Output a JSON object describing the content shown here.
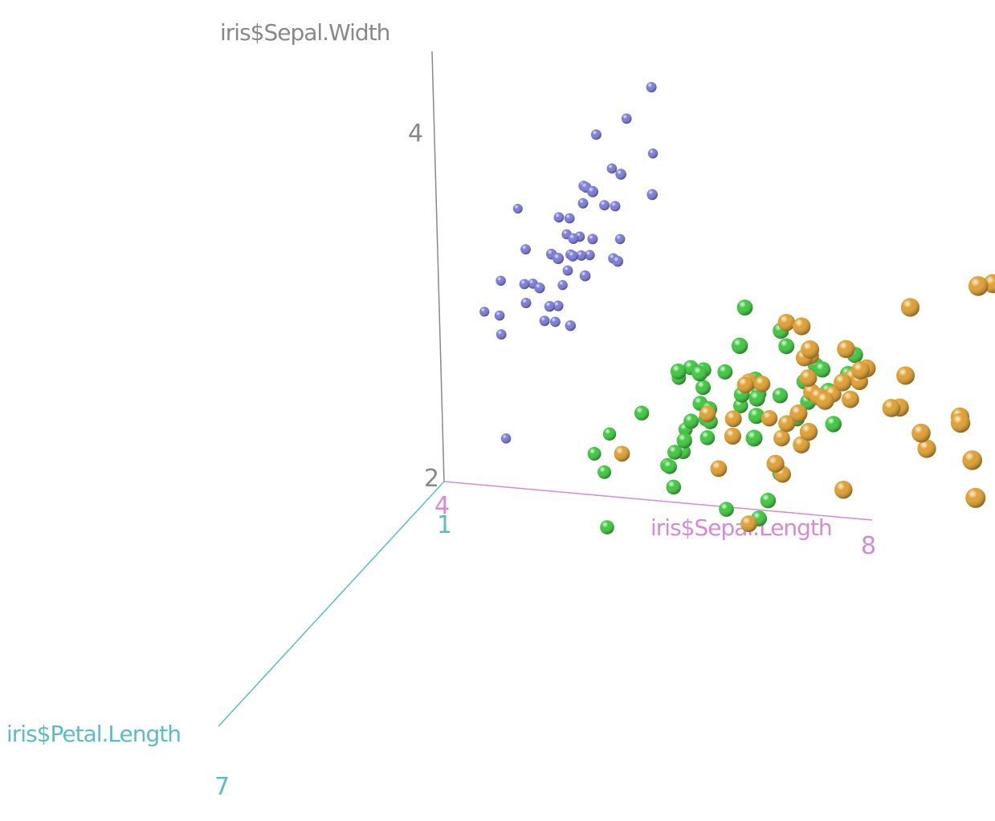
{
  "chart_data": {
    "type": "scatter3d",
    "title": "",
    "axes": {
      "x": {
        "label": "iris$Sepal.Length",
        "ticks": [
          "4",
          "8"
        ],
        "range": [
          4,
          8
        ],
        "color": "#d58ad5"
      },
      "y": {
        "label": "iris$Sepal.Width",
        "ticks": [
          "2",
          "4"
        ],
        "range": [
          2,
          4.4
        ],
        "color": "#888888"
      },
      "z": {
        "label": "iris$Petal.Length",
        "ticks": [
          "1",
          "7"
        ],
        "range": [
          1,
          7
        ],
        "color": "#5bbcc4"
      }
    },
    "grid": false,
    "legend": "none",
    "series": [
      {
        "color": "#7b7bdb",
        "points": [
          [
            5.1,
            3.5,
            1.4
          ],
          [
            4.9,
            3.0,
            1.4
          ],
          [
            4.7,
            3.2,
            1.3
          ],
          [
            4.6,
            3.1,
            1.5
          ],
          [
            5.0,
            3.6,
            1.4
          ],
          [
            5.4,
            3.9,
            1.7
          ],
          [
            4.6,
            3.4,
            1.4
          ],
          [
            5.0,
            3.4,
            1.5
          ],
          [
            4.4,
            2.9,
            1.4
          ],
          [
            4.9,
            3.1,
            1.5
          ],
          [
            5.4,
            3.7,
            1.5
          ],
          [
            4.8,
            3.4,
            1.6
          ],
          [
            4.8,
            3.0,
            1.4
          ],
          [
            4.3,
            3.0,
            1.1
          ],
          [
            5.8,
            4.0,
            1.2
          ],
          [
            5.7,
            4.4,
            1.5
          ],
          [
            5.4,
            3.9,
            1.3
          ],
          [
            5.1,
            3.5,
            1.4
          ],
          [
            5.7,
            3.8,
            1.7
          ],
          [
            5.1,
            3.8,
            1.5
          ],
          [
            5.4,
            3.4,
            1.7
          ],
          [
            5.1,
            3.7,
            1.5
          ],
          [
            4.6,
            3.6,
            1.0
          ],
          [
            5.1,
            3.3,
            1.7
          ],
          [
            4.8,
            3.4,
            1.9
          ],
          [
            5.0,
            3.0,
            1.6
          ],
          [
            5.0,
            3.4,
            1.6
          ],
          [
            5.2,
            3.5,
            1.5
          ],
          [
            5.2,
            3.4,
            1.4
          ],
          [
            4.7,
            3.2,
            1.6
          ],
          [
            4.8,
            3.1,
            1.6
          ],
          [
            5.4,
            3.4,
            1.5
          ],
          [
            5.2,
            4.1,
            1.5
          ],
          [
            5.5,
            4.2,
            1.4
          ],
          [
            4.9,
            3.1,
            1.5
          ],
          [
            5.0,
            3.2,
            1.2
          ],
          [
            5.5,
            3.5,
            1.3
          ],
          [
            4.9,
            3.6,
            1.4
          ],
          [
            4.4,
            3.0,
            1.3
          ],
          [
            5.1,
            3.4,
            1.5
          ],
          [
            5.0,
            3.5,
            1.3
          ],
          [
            4.5,
            2.3,
            1.3
          ],
          [
            4.4,
            3.2,
            1.3
          ],
          [
            5.0,
            3.5,
            1.6
          ],
          [
            5.1,
            3.8,
            1.9
          ],
          [
            4.8,
            3.0,
            1.4
          ],
          [
            5.1,
            3.8,
            1.6
          ],
          [
            4.6,
            3.2,
            1.4
          ],
          [
            5.3,
            3.7,
            1.5
          ],
          [
            5.0,
            3.3,
            1.4
          ]
        ]
      },
      {
        "color": "#3ec83e",
        "points": [
          [
            7.0,
            3.2,
            4.7
          ],
          [
            6.4,
            3.2,
            4.5
          ],
          [
            6.9,
            3.1,
            4.9
          ],
          [
            5.5,
            2.3,
            4.0
          ],
          [
            6.5,
            2.8,
            4.6
          ],
          [
            5.7,
            2.8,
            4.5
          ],
          [
            6.3,
            3.3,
            4.7
          ],
          [
            4.9,
            2.4,
            3.3
          ],
          [
            6.6,
            2.9,
            4.6
          ],
          [
            5.2,
            2.7,
            3.9
          ],
          [
            5.0,
            2.0,
            3.5
          ],
          [
            5.9,
            3.0,
            4.2
          ],
          [
            6.0,
            2.2,
            4.0
          ],
          [
            6.1,
            2.9,
            4.7
          ],
          [
            5.6,
            2.9,
            3.6
          ],
          [
            6.7,
            3.1,
            4.4
          ],
          [
            5.6,
            3.0,
            4.5
          ],
          [
            5.8,
            2.7,
            4.1
          ],
          [
            6.2,
            2.2,
            4.5
          ],
          [
            5.6,
            2.5,
            3.9
          ],
          [
            5.9,
            3.2,
            4.8
          ],
          [
            6.1,
            2.8,
            4.0
          ],
          [
            6.3,
            2.5,
            4.9
          ],
          [
            6.1,
            2.8,
            4.7
          ],
          [
            6.4,
            2.9,
            4.3
          ],
          [
            6.6,
            3.0,
            4.4
          ],
          [
            6.8,
            2.8,
            4.8
          ],
          [
            6.7,
            3.0,
            5.0
          ],
          [
            6.0,
            2.9,
            4.5
          ],
          [
            5.7,
            2.6,
            3.5
          ],
          [
            5.5,
            2.4,
            3.8
          ],
          [
            5.5,
            2.4,
            3.7
          ],
          [
            5.8,
            2.7,
            3.9
          ],
          [
            6.0,
            2.7,
            5.1
          ],
          [
            5.4,
            3.0,
            4.5
          ],
          [
            6.0,
            3.4,
            4.5
          ],
          [
            6.7,
            3.1,
            4.7
          ],
          [
            6.3,
            2.3,
            4.4
          ],
          [
            5.6,
            3.0,
            4.1
          ],
          [
            5.5,
            2.5,
            4.0
          ],
          [
            5.5,
            2.6,
            4.4
          ],
          [
            6.1,
            3.0,
            4.6
          ],
          [
            5.8,
            2.6,
            4.0
          ],
          [
            5.0,
            2.3,
            3.3
          ],
          [
            5.6,
            2.7,
            4.2
          ],
          [
            5.7,
            3.0,
            4.2
          ],
          [
            5.7,
            2.9,
            4.2
          ],
          [
            6.2,
            2.9,
            4.3
          ],
          [
            5.1,
            2.5,
            3.0
          ],
          [
            5.7,
            2.8,
            4.1
          ]
        ]
      },
      {
        "color": "#e0a030",
        "points": [
          [
            6.3,
            3.3,
            6.0
          ],
          [
            5.8,
            2.7,
            5.1
          ],
          [
            7.1,
            3.0,
            5.9
          ],
          [
            6.3,
            2.9,
            5.6
          ],
          [
            6.5,
            3.0,
            5.8
          ],
          [
            7.6,
            3.0,
            6.6
          ],
          [
            4.9,
            2.5,
            4.5
          ],
          [
            7.3,
            2.9,
            6.3
          ],
          [
            6.7,
            2.5,
            5.8
          ],
          [
            7.2,
            3.6,
            6.1
          ],
          [
            6.5,
            3.2,
            5.1
          ],
          [
            6.4,
            2.7,
            5.3
          ],
          [
            6.8,
            3.0,
            5.5
          ],
          [
            5.7,
            2.5,
            5.0
          ],
          [
            5.8,
            2.8,
            5.1
          ],
          [
            6.4,
            3.2,
            5.3
          ],
          [
            6.5,
            3.0,
            5.5
          ],
          [
            7.7,
            3.8,
            6.7
          ],
          [
            7.7,
            2.6,
            6.9
          ],
          [
            6.0,
            2.2,
            5.0
          ],
          [
            6.9,
            3.2,
            5.7
          ],
          [
            5.6,
            2.8,
            4.9
          ],
          [
            7.7,
            2.8,
            6.7
          ],
          [
            6.3,
            2.7,
            4.9
          ],
          [
            6.7,
            3.3,
            5.7
          ],
          [
            7.2,
            3.2,
            6.0
          ],
          [
            6.2,
            2.8,
            4.8
          ],
          [
            6.1,
            3.0,
            4.9
          ],
          [
            6.4,
            2.8,
            5.6
          ],
          [
            7.2,
            3.0,
            5.8
          ],
          [
            7.4,
            2.8,
            6.1
          ],
          [
            7.9,
            3.8,
            6.4
          ],
          [
            6.4,
            2.8,
            5.6
          ],
          [
            6.3,
            2.8,
            5.1
          ],
          [
            6.1,
            2.6,
            5.6
          ],
          [
            7.7,
            3.0,
            6.1
          ],
          [
            6.3,
            3.4,
            5.6
          ],
          [
            6.4,
            3.1,
            5.5
          ],
          [
            6.0,
            3.0,
            4.8
          ],
          [
            6.9,
            3.1,
            5.4
          ],
          [
            6.7,
            3.1,
            5.6
          ],
          [
            6.9,
            3.1,
            5.1
          ],
          [
            5.8,
            2.7,
            5.1
          ],
          [
            6.8,
            3.2,
            5.9
          ],
          [
            6.7,
            3.3,
            5.7
          ],
          [
            6.7,
            3.0,
            5.2
          ],
          [
            6.3,
            2.5,
            5.0
          ],
          [
            6.5,
            3.0,
            5.2
          ],
          [
            6.2,
            3.4,
            5.4
          ],
          [
            5.9,
            3.0,
            5.1
          ]
        ]
      }
    ]
  }
}
